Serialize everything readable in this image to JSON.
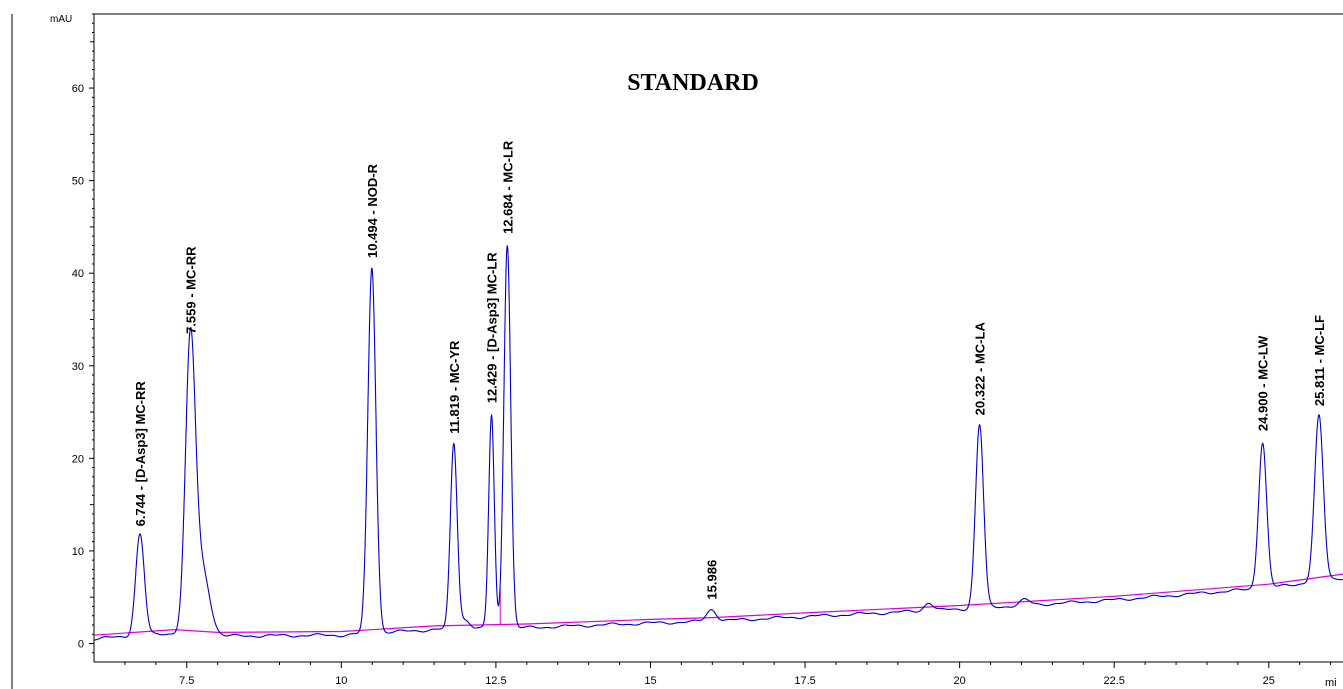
{
  "chart_data": {
    "type": "line",
    "title": "STANDARD",
    "y_unit": "mAU",
    "x_unit": "mi",
    "xlim": [
      6.0,
      26.2
    ],
    "ylim": [
      -2,
      68
    ],
    "x_ticks": [
      7.5,
      10,
      12.5,
      15,
      17.5,
      20,
      22.5,
      25
    ],
    "x_tick_labels": [
      "7.5",
      "10",
      "12.5",
      "15",
      "17.5",
      "20",
      "22.5",
      "25"
    ],
    "y_ticks": [
      0,
      10,
      20,
      30,
      40,
      50,
      60
    ],
    "y_tick_labels": [
      "0",
      "10",
      "20",
      "30",
      "40",
      "50",
      "60"
    ],
    "grid": false,
    "colors": {
      "signal": "#0000cc",
      "baseline": "#dd00dd",
      "axis": "#000000"
    },
    "baseline": [
      [
        6.0,
        0.9
      ],
      [
        7.3,
        1.5
      ],
      [
        8.0,
        1.2
      ],
      [
        10.0,
        1.3
      ],
      [
        11.5,
        1.9
      ],
      [
        13.0,
        2.1
      ],
      [
        15.0,
        2.6
      ],
      [
        16.0,
        2.8
      ],
      [
        17.5,
        3.3
      ],
      [
        20.0,
        4.1
      ],
      [
        22.5,
        5.1
      ],
      [
        25.0,
        6.4
      ],
      [
        26.2,
        7.5
      ]
    ],
    "features": [
      {
        "rt": 6.744,
        "height": 11.0,
        "width": 0.07
      },
      {
        "rt": 7.559,
        "height": 31.0,
        "width": 0.08
      },
      {
        "rt": 7.75,
        "height": 7.0,
        "width": 0.12
      },
      {
        "rt": 10.494,
        "height": 39.5,
        "width": 0.065
      },
      {
        "rt": 11.819,
        "height": 20.0,
        "width": 0.055
      },
      {
        "rt": 12.0,
        "height": 1.0,
        "width": 0.08
      },
      {
        "rt": 12.429,
        "height": 23.0,
        "width": 0.045
      },
      {
        "rt": 12.684,
        "height": 41.5,
        "width": 0.055
      },
      {
        "rt": 15.986,
        "height": 1.3,
        "width": 0.08
      },
      {
        "rt": 19.5,
        "height": 0.9,
        "width": 0.07
      },
      {
        "rt": 20.322,
        "height": 19.8,
        "width": 0.065
      },
      {
        "rt": 21.05,
        "height": 0.6,
        "width": 0.08
      },
      {
        "rt": 24.9,
        "height": 15.8,
        "width": 0.065
      },
      {
        "rt": 25.811,
        "height": 17.8,
        "width": 0.07
      }
    ],
    "peaks": [
      {
        "rt": 6.744,
        "apex": 12.0,
        "label": "6.744 - [D-Asp3] MC-RR"
      },
      {
        "rt": 7.559,
        "apex": 32.8,
        "label": "7.559 - MC-RR"
      },
      {
        "rt": 10.494,
        "apex": 41.0,
        "label": "10.494 - NOD-R"
      },
      {
        "rt": 11.819,
        "apex": 22.0,
        "label": "11.819 - MC-YR"
      },
      {
        "rt": 12.429,
        "apex": 25.3,
        "label": "12.429 - [D-Asp3] MC-LR"
      },
      {
        "rt": 12.684,
        "apex": 43.6,
        "label": "12.684 - MC-LR"
      },
      {
        "rt": 15.986,
        "apex": 4.1,
        "label": "15.986"
      },
      {
        "rt": 20.322,
        "apex": 24.0,
        "label": "20.322 - MC-LA"
      },
      {
        "rt": 24.9,
        "apex": 22.3,
        "label": "24.900 - MC-LW"
      },
      {
        "rt": 25.811,
        "apex": 25.0,
        "label": "25.811 - MC-LF"
      }
    ]
  }
}
